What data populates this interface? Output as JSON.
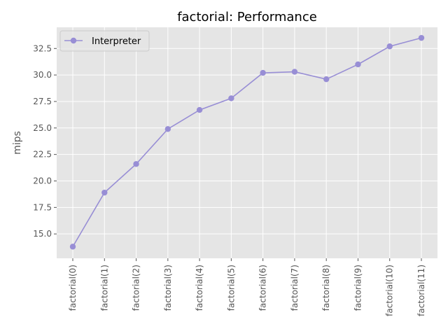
{
  "chart_data": {
    "type": "line",
    "title": "factorial: Performance",
    "xlabel": "",
    "ylabel": "mips",
    "categories": [
      "factorial(0)",
      "factorial(1)",
      "factorial(2)",
      "factorial(3)",
      "factorial(4)",
      "factorial(5)",
      "factorial(6)",
      "factorial(7)",
      "factorial(8)",
      "factorial(9)",
      "factorial(10)",
      "factorial(11)"
    ],
    "series": [
      {
        "name": "Interpreter",
        "values": [
          13.8,
          18.9,
          21.6,
          24.9,
          26.7,
          27.8,
          30.2,
          30.3,
          29.6,
          31.0,
          32.7,
          33.5
        ],
        "color": "#988ED5"
      }
    ],
    "ylim": [
      12.7,
      34.5
    ],
    "yticks": [
      15.0,
      17.5,
      20.0,
      22.5,
      25.0,
      27.5,
      30.0,
      32.5
    ],
    "ytick_labels": [
      "15.0",
      "17.5",
      "20.0",
      "22.5",
      "25.0",
      "27.5",
      "30.0",
      "32.5"
    ],
    "grid": true,
    "legend_position": "upper-left",
    "colors": {
      "plot_background": "#E5E5E5",
      "grid": "#FFFFFF",
      "tick_text": "#555555"
    }
  }
}
